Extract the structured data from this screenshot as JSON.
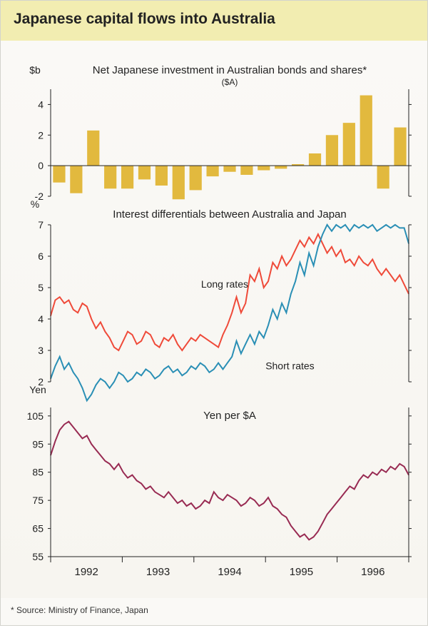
{
  "title": "Japanese capital flows into Australia",
  "source": "* Source: Ministry of Finance, Japan",
  "years": [
    "1992",
    "1993",
    "1994",
    "1995",
    "1996"
  ],
  "panel1": {
    "ylabel_unit": "$b",
    "title": "Net Japanese investment in Australian bonds and shares*",
    "subtitle": "($A)",
    "type": "bar",
    "ylim": [
      -2,
      5
    ],
    "yticks": [
      -2,
      0,
      2,
      4
    ],
    "bar_color": "#e2b93e",
    "values": [
      -1.1,
      -1.8,
      2.3,
      -1.5,
      -1.5,
      -0.9,
      -1.3,
      -2.2,
      -1.6,
      -0.7,
      -0.4,
      -0.6,
      -0.3,
      -0.2,
      0.1,
      0.8,
      2.0,
      2.8,
      4.6,
      -1.5,
      2.5
    ],
    "background_color": "#faf9f6",
    "title_fontsize": 15,
    "subtitle_fontsize": 12,
    "label_fontsize": 14
  },
  "panel2": {
    "ylabel_unit": "%",
    "title": "Interest differentials between Australia and Japan",
    "type": "line",
    "ylim": [
      2,
      7
    ],
    "yticks": [
      2,
      3,
      4,
      5,
      6,
      7
    ],
    "series": {
      "long_rates": {
        "label": "Long rates",
        "color": "#ef4a39",
        "label_x_frac": 0.42,
        "label_y": 5.0,
        "values": [
          4.1,
          4.6,
          4.7,
          4.5,
          4.6,
          4.3,
          4.2,
          4.5,
          4.4,
          4.0,
          3.7,
          3.9,
          3.6,
          3.4,
          3.1,
          3.0,
          3.3,
          3.6,
          3.5,
          3.2,
          3.3,
          3.6,
          3.5,
          3.2,
          3.1,
          3.4,
          3.3,
          3.5,
          3.2,
          3.0,
          3.2,
          3.4,
          3.3,
          3.5,
          3.4,
          3.3,
          3.2,
          3.1,
          3.5,
          3.8,
          4.2,
          4.7,
          4.2,
          4.5,
          5.4,
          5.2,
          5.6,
          5.0,
          5.2,
          5.8,
          5.6,
          6.0,
          5.7,
          5.9,
          6.2,
          6.5,
          6.3,
          6.6,
          6.4,
          6.7,
          6.4,
          6.1,
          6.3,
          6.0,
          6.2,
          5.8,
          5.9,
          5.7,
          6.0,
          5.8,
          5.7,
          5.9,
          5.6,
          5.4,
          5.6,
          5.4,
          5.2,
          5.4,
          5.1,
          4.8
        ]
      },
      "short_rates": {
        "label": "Short rates",
        "color": "#2a8fb5",
        "label_x_frac": 0.6,
        "label_y": 2.4,
        "values": [
          2.1,
          2.5,
          2.8,
          2.4,
          2.6,
          2.3,
          2.1,
          1.8,
          1.4,
          1.6,
          1.9,
          2.1,
          2.0,
          1.8,
          2.0,
          2.3,
          2.2,
          2.0,
          2.1,
          2.3,
          2.2,
          2.4,
          2.3,
          2.1,
          2.2,
          2.4,
          2.5,
          2.3,
          2.4,
          2.2,
          2.3,
          2.5,
          2.4,
          2.6,
          2.5,
          2.3,
          2.4,
          2.6,
          2.4,
          2.6,
          2.8,
          3.3,
          2.9,
          3.2,
          3.5,
          3.2,
          3.6,
          3.4,
          3.8,
          4.3,
          4.0,
          4.5,
          4.2,
          4.8,
          5.2,
          5.8,
          5.4,
          6.1,
          5.7,
          6.3,
          6.7,
          7.0,
          6.8,
          7.0,
          6.9,
          7.0,
          6.8,
          7.0,
          6.9,
          7.0,
          6.9,
          7.0,
          6.8,
          6.9,
          7.0,
          6.9,
          7.0,
          6.9,
          6.9,
          6.4
        ]
      }
    },
    "title_fontsize": 15,
    "label_fontsize": 14
  },
  "panel3": {
    "ylabel_unit": "Yen",
    "title": "Yen per $A",
    "type": "line",
    "ylim": [
      55,
      108
    ],
    "yticks": [
      55,
      65,
      75,
      85,
      95,
      105
    ],
    "color": "#982a52",
    "values": [
      91,
      96,
      100,
      102,
      103,
      101,
      99,
      97,
      98,
      95,
      93,
      91,
      89,
      88,
      86,
      88,
      85,
      83,
      84,
      82,
      81,
      79,
      80,
      78,
      77,
      76,
      78,
      76,
      74,
      75,
      73,
      74,
      72,
      73,
      75,
      74,
      78,
      76,
      75,
      77,
      76,
      75,
      73,
      74,
      76,
      75,
      73,
      74,
      76,
      73,
      72,
      70,
      69,
      66,
      64,
      62,
      63,
      61,
      62,
      64,
      67,
      70,
      72,
      74,
      76,
      78,
      80,
      79,
      82,
      84,
      83,
      85,
      84,
      86,
      85,
      87,
      86,
      88,
      87,
      84
    ],
    "title_fontsize": 15,
    "label_fontsize": 14
  },
  "colors": {
    "text": "#222222",
    "panel_bg": "#faf9f6",
    "title_band_bg": "#f2edb1",
    "border": "#d3d3cd"
  }
}
